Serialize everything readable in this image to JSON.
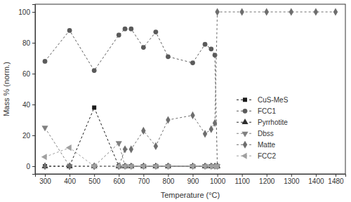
{
  "chart_data": {
    "type": "line",
    "x_label": "Temperature (°C)",
    "y_label": "Mass % (norm.)",
    "x": [
      300,
      400,
      500,
      600,
      625,
      650,
      700,
      750,
      800,
      900,
      950,
      975,
      990,
      1000,
      1100,
      1200,
      1300,
      1400,
      1480
    ],
    "xlim": [
      260,
      1520
    ],
    "xticks": [
      300,
      400,
      500,
      600,
      700,
      800,
      900,
      1000,
      1100,
      1200,
      1300,
      1400,
      1480
    ],
    "ylim": [
      -5,
      105
    ],
    "yticks": [
      0,
      20,
      40,
      60,
      80,
      100
    ],
    "grid": false,
    "legend": "right",
    "line_style": "dashed",
    "series": [
      {
        "name": "CuS-MeS",
        "color": "#1a1a1a",
        "marker": "square",
        "values": [
          0,
          0,
          38,
          0,
          0,
          0,
          0,
          0,
          0,
          0,
          0,
          0,
          0,
          0,
          null,
          null,
          null,
          null,
          null
        ]
      },
      {
        "name": "FCC1",
        "color": "#5a5a5a",
        "marker": "circle",
        "values": [
          68,
          88,
          62,
          85,
          89,
          89,
          77,
          87,
          71,
          67,
          79,
          76,
          72,
          0,
          null,
          null,
          null,
          null,
          null
        ]
      },
      {
        "name": "Pyrrhotite",
        "color": "#2e2e2e",
        "marker": "triangle-up",
        "values": [
          0,
          0,
          0,
          0,
          0,
          0,
          0,
          0,
          0,
          0,
          0,
          0,
          0,
          0,
          null,
          null,
          null,
          null,
          null
        ]
      },
      {
        "name": "Dbss",
        "color": "#808080",
        "marker": "triangle-down",
        "values": [
          25,
          0,
          0,
          15,
          0,
          0,
          0,
          0,
          0,
          0,
          0,
          0,
          0,
          0,
          null,
          null,
          null,
          null,
          null
        ]
      },
      {
        "name": "Matte",
        "color": "#6e6e6e",
        "marker": "diamond",
        "values": [
          0,
          0,
          0,
          0,
          11,
          11,
          23,
          13,
          30,
          33,
          21,
          24,
          28,
          100,
          100,
          100,
          100,
          100,
          100
        ]
      },
      {
        "name": "FCC2",
        "color": "#a0a0a0",
        "marker": "triangle-left",
        "values": [
          6,
          12,
          0,
          0,
          0,
          0,
          0,
          0,
          0,
          0,
          0,
          0,
          0,
          0,
          null,
          null,
          null,
          null,
          null
        ]
      }
    ]
  }
}
